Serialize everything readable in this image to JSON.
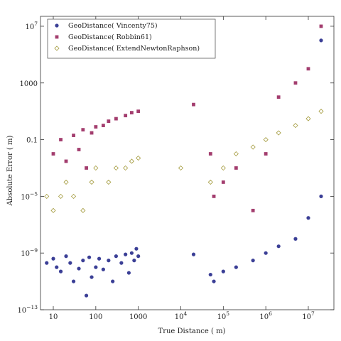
{
  "chart_data": {
    "type": "scatter",
    "xlabel": "True Distance ( m)",
    "ylabel": "Absolute Error ( m)",
    "x_scale": "log",
    "y_scale": "log",
    "xlim": [
      5,
      40000000
    ],
    "ylim": [
      1e-13,
      50000000.0
    ],
    "x_ticks": [
      {
        "value": 10,
        "base": "10",
        "exp": ""
      },
      {
        "value": 100,
        "base": "100",
        "exp": ""
      },
      {
        "value": 1000,
        "base": "1000",
        "exp": ""
      },
      {
        "value": 10000,
        "base": "10",
        "exp": "4"
      },
      {
        "value": 100000,
        "base": "10",
        "exp": "5"
      },
      {
        "value": 1000000,
        "base": "10",
        "exp": "6"
      },
      {
        "value": 10000000,
        "base": "10",
        "exp": "7"
      }
    ],
    "y_ticks": [
      {
        "value": 1e-13,
        "base": "10",
        "exp": "−13"
      },
      {
        "value": 1e-09,
        "base": "10",
        "exp": "−9"
      },
      {
        "value": 1e-05,
        "base": "10",
        "exp": "−5"
      },
      {
        "value": 0.1,
        "base": "0.1",
        "exp": ""
      },
      {
        "value": 1000,
        "base": "1000",
        "exp": ""
      },
      {
        "value": 10000000.0,
        "base": "10",
        "exp": "7"
      }
    ],
    "grid": false,
    "legend_position": "top-left",
    "series": [
      {
        "name": "GeoDistance( Vincenty75)",
        "marker": "circle",
        "color": "#3b3f96",
        "points": [
          [
            7,
            2e-10
          ],
          [
            10,
            4e-10
          ],
          [
            12,
            1e-10
          ],
          [
            15,
            5e-11
          ],
          [
            20,
            6e-10
          ],
          [
            25,
            2e-10
          ],
          [
            30,
            1e-11
          ],
          [
            40,
            8e-11
          ],
          [
            50,
            3e-10
          ],
          [
            60,
            1e-12
          ],
          [
            70,
            5e-10
          ],
          [
            80,
            2e-11
          ],
          [
            100,
            1e-10
          ],
          [
            120,
            4e-10
          ],
          [
            150,
            7e-11
          ],
          [
            200,
            3e-10
          ],
          [
            250,
            1e-11
          ],
          [
            300,
            6e-10
          ],
          [
            400,
            2e-10
          ],
          [
            500,
            8e-10
          ],
          [
            600,
            4e-11
          ],
          [
            700,
            1e-09
          ],
          [
            800,
            3e-10
          ],
          [
            900,
            2e-09
          ],
          [
            1000,
            6e-10
          ],
          [
            20000,
            8e-10
          ],
          [
            50000,
            3e-11
          ],
          [
            60000,
            1e-11
          ],
          [
            100000,
            5e-11
          ],
          [
            200000,
            1e-10
          ],
          [
            500000,
            3e-10
          ],
          [
            1000000,
            1e-09
          ],
          [
            2000000,
            3e-09
          ],
          [
            5000000,
            1e-08
          ],
          [
            10000000,
            3e-07
          ],
          [
            20000000,
            1e-05
          ],
          [
            20000000,
            1000000.0
          ]
        ]
      },
      {
        "name": "GeoDistance( Robbin61)",
        "marker": "square",
        "color": "#a33d6e",
        "points": [
          [
            10,
            0.01
          ],
          [
            15,
            0.1
          ],
          [
            20,
            0.003
          ],
          [
            30,
            0.2
          ],
          [
            40,
            0.02
          ],
          [
            50,
            0.5
          ],
          [
            60,
            0.001
          ],
          [
            80,
            0.3
          ],
          [
            100,
            0.8
          ],
          [
            150,
            1
          ],
          [
            200,
            2
          ],
          [
            300,
            3
          ],
          [
            500,
            5
          ],
          [
            700,
            8
          ],
          [
            1000,
            10
          ],
          [
            20000,
            30
          ],
          [
            50000,
            0.01
          ],
          [
            60000,
            1e-05
          ],
          [
            100000,
            0.0001
          ],
          [
            200000,
            0.001
          ],
          [
            500000,
            1e-06
          ],
          [
            1000000,
            0.01
          ],
          [
            2000000,
            100
          ],
          [
            5000000,
            1000
          ],
          [
            10000000,
            10000.0
          ],
          [
            20000000,
            10000000.0
          ]
        ]
      },
      {
        "name": "GeoDistance( ExtendNewtonRaphson)",
        "marker": "diamond",
        "color": "#a39a3c",
        "points": [
          [
            7,
            1e-05
          ],
          [
            10,
            1e-06
          ],
          [
            15,
            1e-05
          ],
          [
            20,
            0.0001
          ],
          [
            30,
            1e-05
          ],
          [
            50,
            1e-06
          ],
          [
            80,
            0.0001
          ],
          [
            100,
            0.001
          ],
          [
            200,
            0.0001
          ],
          [
            300,
            0.001
          ],
          [
            500,
            0.001
          ],
          [
            700,
            0.003
          ],
          [
            1000,
            0.005
          ],
          [
            10000,
            0.001
          ],
          [
            50000,
            0.0001
          ],
          [
            100000,
            0.001
          ],
          [
            200000,
            0.01
          ],
          [
            500000,
            0.03
          ],
          [
            1000000,
            0.1
          ],
          [
            2000000,
            0.3
          ],
          [
            5000000,
            1
          ],
          [
            10000000,
            3
          ],
          [
            20000000,
            10
          ]
        ]
      }
    ]
  }
}
